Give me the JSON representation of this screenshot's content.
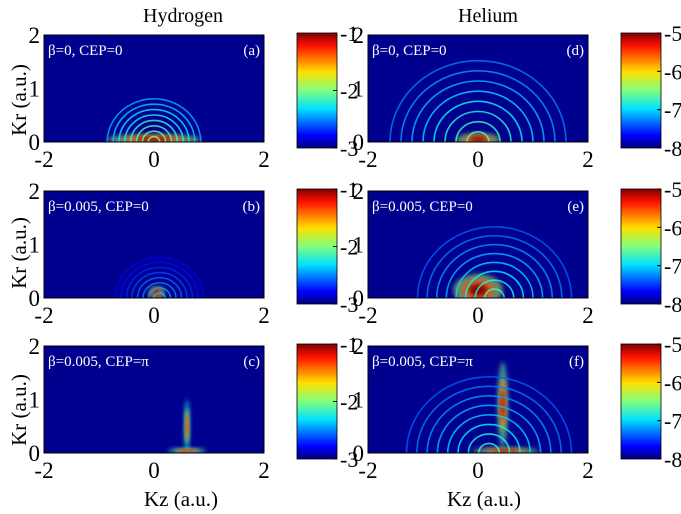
{
  "figure": {
    "column_titles": [
      "Hydrogen",
      "Helium"
    ],
    "x_axis_label": "Kz (a.u.)",
    "y_axis_label": "Kr (a.u.)"
  },
  "chart_data": [
    {
      "type": "heatmap",
      "panel": "(a)",
      "column": "Hydrogen",
      "annotation": "β=0, CEP=0",
      "xlabel": "Kz (a.u.)",
      "ylabel": "Kr (a.u.)",
      "xlim": [
        -2,
        2
      ],
      "ylim": [
        0,
        2
      ],
      "xticks": [
        -2,
        0,
        2
      ],
      "yticks": [
        0,
        1,
        2
      ],
      "colorbar": {
        "range": [
          -3,
          -1
        ],
        "ticks": [
          -1,
          -2,
          -3
        ]
      },
      "features": [
        {
          "kind": "blob",
          "kz": 0.0,
          "kr": 0.05,
          "skz": 0.85,
          "skr": 0.1,
          "value": -1.0
        },
        {
          "kind": "rings",
          "kz": 0.0,
          "kr": 0.0,
          "rmax": 0.85,
          "value": -1.9
        }
      ]
    },
    {
      "type": "heatmap",
      "panel": "(b)",
      "column": "Hydrogen",
      "annotation": "β=0.005, CEP=0",
      "xlabel": "Kz (a.u.)",
      "ylabel": "Kr (a.u.)",
      "xlim": [
        -2,
        2
      ],
      "ylim": [
        0,
        2
      ],
      "xticks": [
        -2,
        0,
        2
      ],
      "yticks": [
        0,
        1,
        2
      ],
      "colorbar": {
        "range": [
          -3,
          -1
        ],
        "ticks": [
          -1,
          -2,
          -3
        ]
      },
      "features": [
        {
          "kind": "blob",
          "kz": 0.05,
          "kr": 0.1,
          "skz": 0.15,
          "skr": 0.12,
          "value": -1.0
        },
        {
          "kind": "rings",
          "kz": 0.1,
          "kr": 0.0,
          "rmax": 0.8,
          "value": -2.3
        }
      ]
    },
    {
      "type": "heatmap",
      "panel": "(c)",
      "column": "Hydrogen",
      "annotation": "β=0.005, CEP=π",
      "xlabel": "Kz (a.u.)",
      "ylabel": "Kr (a.u.)",
      "xlim": [
        -2,
        2
      ],
      "ylim": [
        0,
        2
      ],
      "xticks": [
        -2,
        0,
        2
      ],
      "yticks": [
        0,
        1,
        2
      ],
      "colorbar": {
        "range": [
          -3,
          -1
        ],
        "ticks": [
          -1,
          -2,
          -3
        ]
      },
      "features": [
        {
          "kind": "streak",
          "kz": 0.6,
          "kr": 0.5,
          "skz": 0.06,
          "skr": 0.5,
          "value": -1.3
        },
        {
          "kind": "blob",
          "kz": 0.6,
          "kr": 0.04,
          "skz": 0.35,
          "skr": 0.06,
          "value": -1.2
        }
      ]
    },
    {
      "type": "heatmap",
      "panel": "(d)",
      "column": "Helium",
      "annotation": "β=0, CEP=0",
      "xlabel": "Kz (a.u.)",
      "ylabel": "Kr (a.u.)",
      "xlim": [
        -2,
        2
      ],
      "ylim": [
        0,
        2
      ],
      "xticks": [
        -2,
        0,
        2
      ],
      "yticks": [
        0,
        1,
        2
      ],
      "colorbar": {
        "range": [
          -8,
          -5
        ],
        "ticks": [
          -5,
          -6,
          -7,
          -8
        ]
      },
      "features": [
        {
          "kind": "blob",
          "kz": 0.0,
          "kr": 0.05,
          "skz": 0.4,
          "skr": 0.12,
          "value": -5.0
        },
        {
          "kind": "rings",
          "kz": 0.0,
          "kr": 0.0,
          "rmax": 1.6,
          "value": -6.5
        }
      ]
    },
    {
      "type": "heatmap",
      "panel": "(e)",
      "column": "Helium",
      "annotation": "β=0.005, CEP=0",
      "xlabel": "Kz (a.u.)",
      "ylabel": "Kr (a.u.)",
      "xlim": [
        -2,
        2
      ],
      "ylim": [
        0,
        2
      ],
      "xticks": [
        -2,
        0,
        2
      ],
      "yticks": [
        0,
        1,
        2
      ],
      "colorbar": {
        "range": [
          -8,
          -5
        ],
        "ticks": [
          -5,
          -6,
          -7,
          -8
        ]
      },
      "features": [
        {
          "kind": "blob",
          "kz": 0.0,
          "kr": 0.15,
          "skz": 0.45,
          "skr": 0.3,
          "value": -5.0
        },
        {
          "kind": "rings",
          "kz": 0.3,
          "kr": 0.0,
          "rmax": 1.4,
          "value": -6.6
        }
      ]
    },
    {
      "type": "heatmap",
      "panel": "(f)",
      "column": "Helium",
      "annotation": "β=0.005, CEP=π",
      "xlabel": "Kz (a.u.)",
      "ylabel": "Kr (a.u.)",
      "xlim": [
        -2,
        2
      ],
      "ylim": [
        0,
        2
      ],
      "xticks": [
        -2,
        0,
        2
      ],
      "yticks": [
        0,
        1,
        2
      ],
      "colorbar": {
        "range": [
          -8,
          -5
        ],
        "ticks": [
          -5,
          -6,
          -7,
          -8
        ]
      },
      "features": [
        {
          "kind": "streak",
          "kz": 0.45,
          "kr": 0.9,
          "skz": 0.1,
          "skr": 0.8,
          "value": -5.2
        },
        {
          "kind": "blob",
          "kz": 0.5,
          "kr": 0.04,
          "skz": 0.6,
          "skr": 0.07,
          "value": -5.1
        },
        {
          "kind": "rings",
          "kz": 0.2,
          "kr": 0.0,
          "rmax": 1.5,
          "value": -6.6
        }
      ]
    }
  ]
}
